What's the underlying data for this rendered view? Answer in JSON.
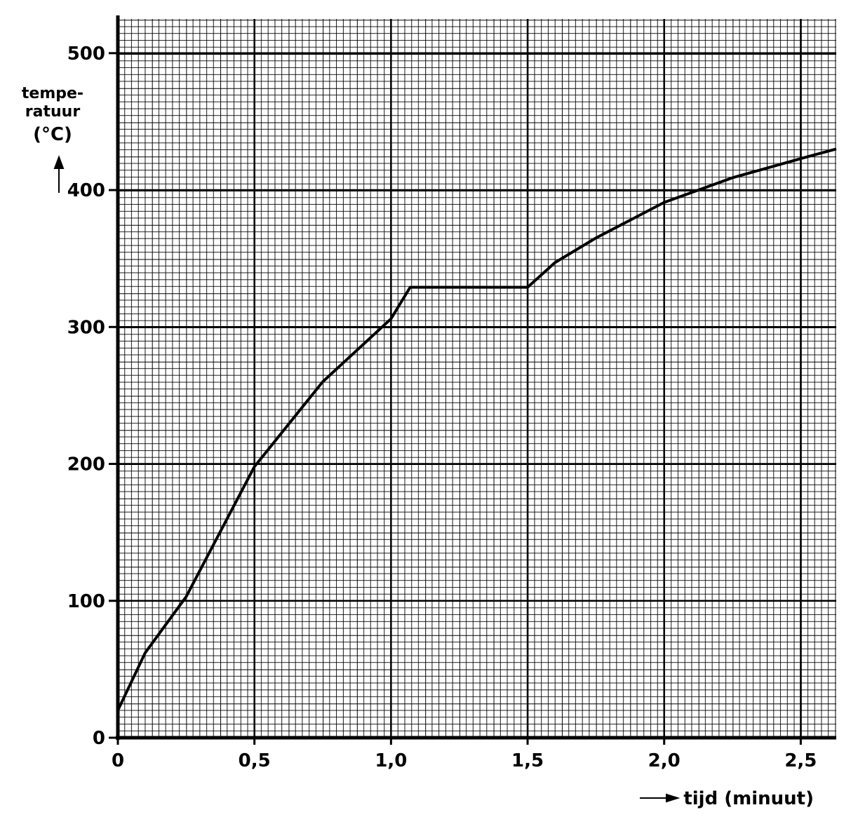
{
  "chart_data": {
    "type": "line",
    "y_label": [
      "tempe-",
      "ratuur",
      "(°C)"
    ],
    "x_label": "tijd (minuut)",
    "x": [
      0,
      0.1,
      0.25,
      0.5,
      0.75,
      1.0,
      1.07,
      1.5,
      1.6,
      1.75,
      2.0,
      2.25,
      2.5,
      2.63
    ],
    "series": [
      {
        "color": "#000000",
        "values": [
          20,
          62,
          103,
          198,
          260,
          306,
          329,
          329,
          347,
          365,
          391,
          409,
          423,
          430
        ]
      }
    ],
    "xlim": [
      0,
      2.63
    ],
    "ylim": [
      0,
      525
    ],
    "xticks": [
      0,
      {
        "value": 0.5,
        "label": "0,5"
      },
      {
        "value": 1.0,
        "label": "1,0"
      },
      {
        "value": 1.5,
        "label": "1,5"
      },
      {
        "value": 2.0,
        "label": "2,0"
      },
      {
        "value": 2.5,
        "label": "2,5"
      }
    ],
    "yticks": [
      0,
      100,
      200,
      300,
      400,
      500
    ],
    "grid": true
  }
}
